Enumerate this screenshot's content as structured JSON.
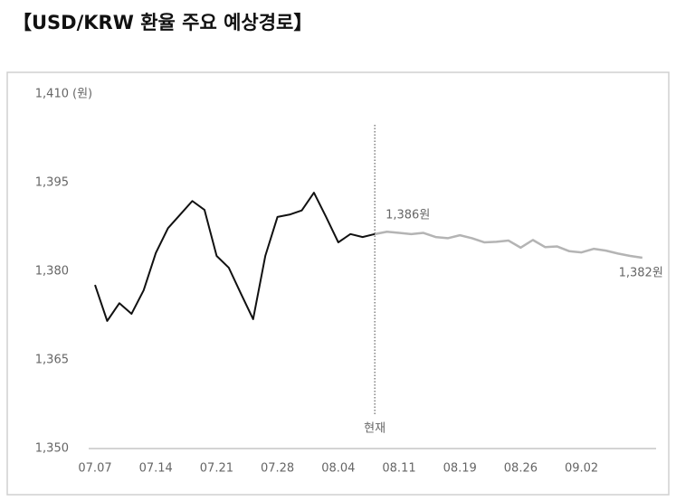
{
  "chart_data": {
    "type": "line",
    "title": "【USD/KRW 환율 주요 예상경로】",
    "ylabel": "(원)",
    "categories": [
      "07.07",
      null,
      null,
      null,
      null,
      "07.14",
      null,
      null,
      null,
      null,
      "07.21",
      null,
      null,
      null,
      null,
      "07.28",
      null,
      null,
      null,
      null,
      "08.04",
      null,
      null,
      null,
      null,
      "08.11",
      null,
      null,
      null,
      null,
      "08.19",
      null,
      null,
      null,
      null,
      "08.26",
      null,
      null,
      null,
      null,
      "09.02",
      null,
      null,
      null,
      null,
      null
    ],
    "series": [
      {
        "color": "#111111",
        "values": [
          1377.7,
          1371.6,
          1374.6,
          1372.8,
          1376.8,
          1383.1,
          1387.3,
          1389.6,
          1391.9,
          1390.4,
          1382.6,
          1380.6,
          1376.2,
          1371.9,
          1382.6,
          1389.2,
          1389.6,
          1390.3,
          1393.3,
          1389.2,
          1384.9,
          1386.3,
          1385.8,
          1386.3,
          null,
          null,
          null,
          null,
          null,
          null,
          null,
          null,
          null,
          null,
          null,
          null,
          null,
          null,
          null,
          null,
          null,
          null,
          null,
          null,
          null,
          null
        ]
      },
      {
        "color": "#b4b4b4",
        "values": [
          null,
          null,
          null,
          null,
          null,
          null,
          null,
          null,
          null,
          null,
          null,
          null,
          null,
          null,
          null,
          null,
          null,
          null,
          null,
          null,
          null,
          null,
          null,
          1386.3,
          1386.7,
          1386.5,
          1386.3,
          1386.5,
          1385.8,
          1385.6,
          1386.1,
          1385.6,
          1384.9,
          1385.0,
          1385.2,
          1384.0,
          1385.3,
          1384.1,
          1384.2,
          1383.4,
          1383.2,
          1383.8,
          1383.5,
          1383.0,
          1382.6,
          1382.3
        ]
      }
    ],
    "ylim": [
      1350,
      1410
    ],
    "yticks": [
      {
        "value": 1350,
        "label": "1,350"
      },
      {
        "value": 1365,
        "label": "1,365"
      },
      {
        "value": 1380,
        "label": "1,380"
      },
      {
        "value": 1395,
        "label": "1,395"
      },
      {
        "value": 1410,
        "label": "1,410"
      }
    ],
    "grid": false,
    "annotations": [
      {
        "text": "현재",
        "index": 23
      },
      {
        "text": "1,386원",
        "index": 23,
        "value": 1386.3
      },
      {
        "text": "1,382원",
        "index": 45,
        "value": 1382.3
      }
    ]
  }
}
